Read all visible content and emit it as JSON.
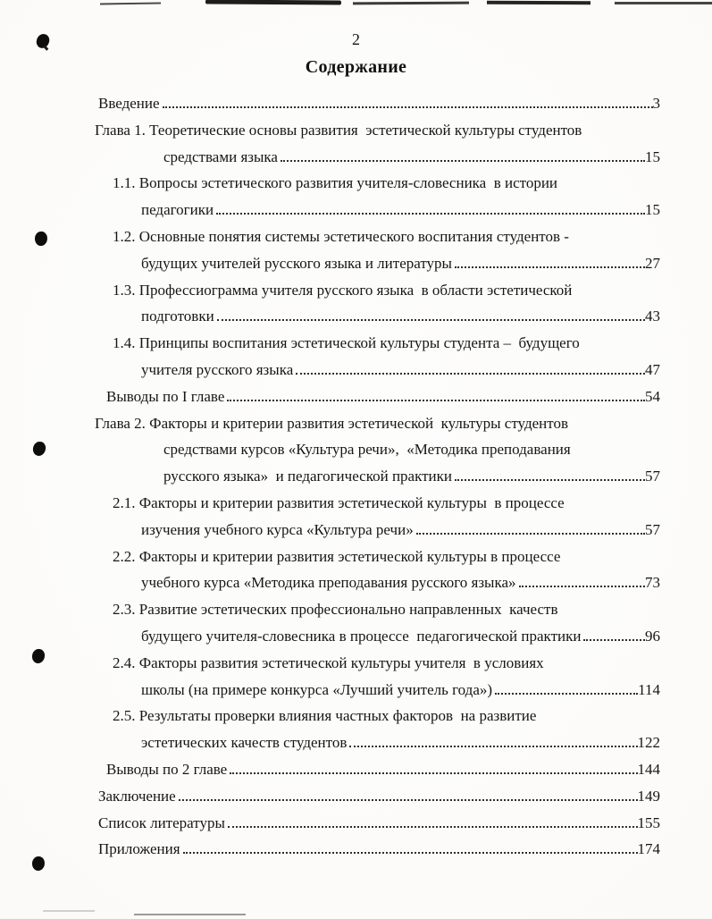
{
  "page": {
    "number": "2",
    "title": "Содержание"
  },
  "colors": {
    "ink": "#161616",
    "paper": "#fbfaf8",
    "leader_dot": "#2e2e2e",
    "artifact": "#1d1d1d"
  },
  "toc": {
    "lines": [
      {
        "text": "Введение",
        "page": "3",
        "level": "root"
      },
      {
        "text": "Глава 1. Теоретические основы развития  эстетической культуры студентов",
        "page": null,
        "level": "chapter"
      },
      {
        "text": "средствами языка",
        "page": "15",
        "level": "cont-chapter"
      },
      {
        "text": "1.1. Вопросы эстетического развития учителя-словесника  в истории",
        "page": null,
        "level": "section"
      },
      {
        "text": "педагогики",
        "page": "15",
        "level": "cont-section"
      },
      {
        "text": "1.2. Основные понятия системы эстетического воспитания студентов -",
        "page": null,
        "level": "section"
      },
      {
        "text": "будущих учителей русского языка и литературы",
        "page": "27",
        "level": "cont-section"
      },
      {
        "text": "1.3. Профессиограмма учителя русского языка  в области эстетической",
        "page": null,
        "level": "section"
      },
      {
        "text": "подготовки",
        "page": "43",
        "level": "cont-section"
      },
      {
        "text": "1.4. Принципы воспитания эстетической культуры студента –  будущего",
        "page": null,
        "level": "section"
      },
      {
        "text": "учителя русского языка",
        "page": "47",
        "level": "cont-section"
      },
      {
        "text": "Выводы по I главе",
        "page": "54",
        "level": "vyvody"
      },
      {
        "text": "Глава 2. Факторы и критерии развития эстетической  культуры студентов",
        "page": null,
        "level": "chapter"
      },
      {
        "text": "средствами курсов «Культура речи»,  «Методика преподавания",
        "page": null,
        "level": "cont-chapter"
      },
      {
        "text": "русского языка»  и педагогической практики",
        "page": "57",
        "level": "cont-chapter"
      },
      {
        "text": "2.1. Факторы и критерии развития эстетической культуры  в процессе",
        "page": null,
        "level": "section"
      },
      {
        "text": "изучения учебного курса «Культура речи»",
        "page": "57",
        "level": "cont-section"
      },
      {
        "text": "2.2. Факторы и критерии развития эстетической культуры в процессе",
        "page": null,
        "level": "section"
      },
      {
        "text": "учебного курса «Методика преподавания русского языка»",
        "page": "73",
        "level": "cont-section"
      },
      {
        "text": "2.3. Развитие эстетических профессионально направленных  качеств",
        "page": null,
        "level": "section"
      },
      {
        "text": "будущего учителя-словесника в процессе  педагогической практики",
        "page": "96",
        "level": "cont-section"
      },
      {
        "text": "2.4. Факторы развития эстетической культуры учителя  в условиях",
        "page": null,
        "level": "section"
      },
      {
        "text": "школы (на примере конкурса «Лучший учитель года»)",
        "page": "114",
        "level": "cont-section"
      },
      {
        "text": "2.5. Результаты проверки влияния частных факторов  на развитие",
        "page": null,
        "level": "section"
      },
      {
        "text": "эстетических качеств студентов",
        "page": "122",
        "level": "cont-section"
      },
      {
        "text": "Выводы по 2 главе",
        "page": "144",
        "level": "vyvody"
      },
      {
        "text": "Заключение",
        "page": "149",
        "level": "root"
      },
      {
        "text": "Список литературы",
        "page": "155",
        "level": "root"
      },
      {
        "text": "Приложения",
        "page": "174",
        "level": "root"
      }
    ]
  }
}
